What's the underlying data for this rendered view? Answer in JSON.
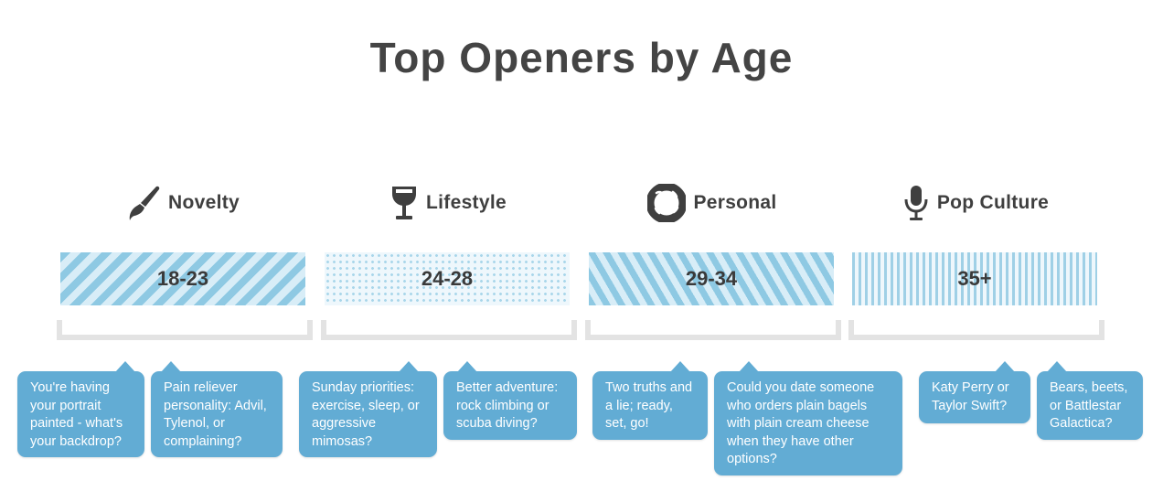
{
  "title": "Top Openers by Age",
  "colors": {
    "bubble": "#62acd4",
    "pattern": "#8ec9e3",
    "bracket": "#e3e3e3",
    "text": "#444444"
  },
  "categories": [
    {
      "label": "Novelty",
      "icon": "paintbrush-icon",
      "age_range": "18-23",
      "openers": [
        "You're having your portrait painted - what's your backdrop?",
        "Pain reliever personality: Advil, Tylenol, or complaining?"
      ]
    },
    {
      "label": "Lifestyle",
      "icon": "wine-glass-icon",
      "age_range": "24-28",
      "openers": [
        "Sunday priorities: exercise, sleep, or aggressive mimosas?",
        "Better adventure: rock climbing or scuba diving?"
      ]
    },
    {
      "label": "Personal",
      "icon": "donut-icon",
      "age_range": "29-34",
      "openers": [
        "Two truths and a lie; ready, set, go!",
        "Could you date someone who orders plain bagels with plain cream cheese when they have other options?"
      ]
    },
    {
      "label": "Pop Culture",
      "icon": "microphone-icon",
      "age_range": "35+",
      "openers": [
        "Katy Perry or Taylor Swift?",
        "Bears, beets, or Battlestar Galactica?"
      ]
    }
  ]
}
